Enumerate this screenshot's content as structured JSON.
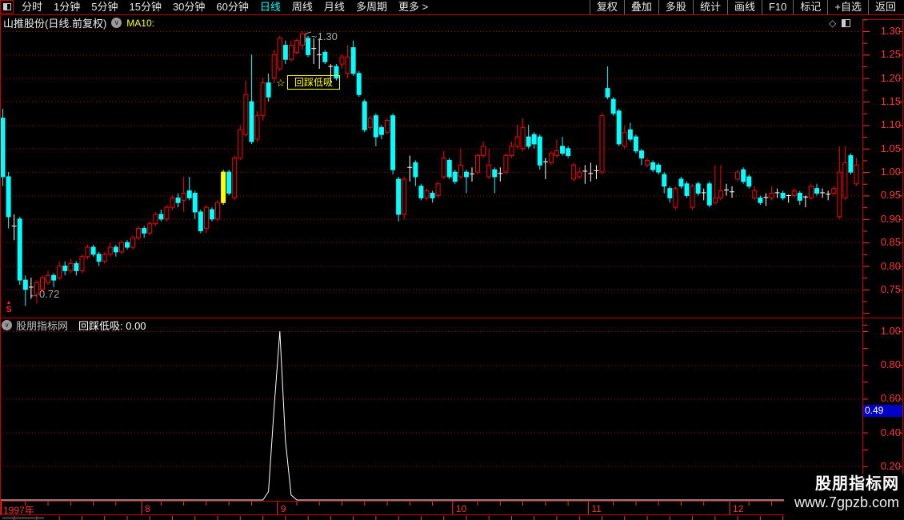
{
  "menu_left": {
    "items": [
      {
        "label": "分时",
        "active": false
      },
      {
        "label": "1分钟",
        "active": false
      },
      {
        "label": "5分钟",
        "active": false
      },
      {
        "label": "15分钟",
        "active": false
      },
      {
        "label": "30分钟",
        "active": false
      },
      {
        "label": "60分钟",
        "active": false
      },
      {
        "label": "日线",
        "active": true
      },
      {
        "label": "周线",
        "active": false
      },
      {
        "label": "月线",
        "active": false
      },
      {
        "label": "多周期",
        "active": false
      },
      {
        "label": "更多 >",
        "active": false
      }
    ]
  },
  "menu_right": {
    "items": [
      "复权",
      "叠加",
      "多股",
      "统计",
      "画线",
      "F10",
      "标记",
      "+自选",
      "返回"
    ]
  },
  "title": {
    "stock": "山推股份(日线.前复权)",
    "ma_label": "MA10:",
    "diamond_icon": "◇"
  },
  "indicator_header": {
    "brand": "股朋指标网",
    "name_value": "回踩低吸: 0.00"
  },
  "watermark": {
    "line1": "股朋指标网",
    "line2": "www.7gpzb.com"
  },
  "colors": {
    "up": "#ff0000",
    "down": "#00ffff",
    "doji": "#ffffff",
    "highlight": "#ffff00",
    "axis_text": "#ff3232",
    "grid": "#b40000",
    "frame": "#c80000",
    "active_tab": "#00ffff",
    "badge_bg": "#0000c8",
    "spike": "#ffffff"
  },
  "chart_data": {
    "type": "candlestick",
    "title": "山推股份 日线 前复权 1997",
    "price_axis_labels": [
      "1.30",
      "1.25",
      "1.20",
      "1.15",
      "1.10",
      "1.05",
      "1.00",
      "0.95",
      "0.90",
      "0.85",
      "0.80",
      "0.75"
    ],
    "price_axis_range": [
      0.75,
      1.3
    ],
    "candles_ohlc_order": "open,high,low,close",
    "candles": [
      [
        1.115,
        1.135,
        0.97,
        0.99
      ],
      [
        0.99,
        1.0,
        0.88,
        0.905
      ],
      [
        0.89,
        0.91,
        0.855,
        0.885
      ],
      [
        0.9,
        0.905,
        0.76,
        0.77
      ],
      [
        0.77,
        0.78,
        0.715,
        0.75
      ],
      [
        0.758,
        0.775,
        0.73,
        0.755
      ],
      [
        0.74,
        0.77,
        0.72,
        0.765
      ],
      [
        0.75,
        0.78,
        0.745,
        0.775
      ],
      [
        0.765,
        0.79,
        0.76,
        0.78
      ],
      [
        0.78,
        0.785,
        0.755,
        0.77
      ],
      [
        0.775,
        0.81,
        0.77,
        0.8
      ],
      [
        0.8,
        0.81,
        0.78,
        0.79
      ],
      [
        0.79,
        0.815,
        0.785,
        0.805
      ],
      [
        0.805,
        0.81,
        0.78,
        0.79
      ],
      [
        0.79,
        0.825,
        0.785,
        0.82
      ],
      [
        0.82,
        0.845,
        0.815,
        0.84
      ],
      [
        0.84,
        0.845,
        0.82,
        0.825
      ],
      [
        0.825,
        0.83,
        0.8,
        0.81
      ],
      [
        0.81,
        0.83,
        0.805,
        0.825
      ],
      [
        0.825,
        0.85,
        0.82,
        0.84
      ],
      [
        0.84,
        0.845,
        0.82,
        0.83
      ],
      [
        0.83,
        0.855,
        0.825,
        0.85
      ],
      [
        0.85,
        0.855,
        0.835,
        0.84
      ],
      [
        0.84,
        0.865,
        0.835,
        0.86
      ],
      [
        0.86,
        0.885,
        0.855,
        0.88
      ],
      [
        0.88,
        0.885,
        0.86,
        0.87
      ],
      [
        0.87,
        0.895,
        0.865,
        0.89
      ],
      [
        0.89,
        0.915,
        0.885,
        0.91
      ],
      [
        0.91,
        0.92,
        0.895,
        0.9
      ],
      [
        0.9,
        0.93,
        0.895,
        0.925
      ],
      [
        0.925,
        0.95,
        0.92,
        0.945
      ],
      [
        0.945,
        0.955,
        0.925,
        0.935
      ],
      [
        0.94,
        0.99,
        0.915,
        0.955
      ],
      [
        0.96,
        0.99,
        0.94,
        0.945
      ],
      [
        0.955,
        0.96,
        0.9,
        0.915
      ],
      [
        0.915,
        0.92,
        0.87,
        0.875
      ],
      [
        0.88,
        0.93,
        0.87,
        0.925
      ],
      [
        0.92,
        0.925,
        0.895,
        0.9
      ],
      [
        0.9,
        0.94,
        0.895,
        0.935
      ],
      [
        0.935,
        1.005,
        0.93,
        1.0
      ],
      [
        1.0,
        1.005,
        0.95,
        0.955
      ],
      [
        0.945,
        1.035,
        0.94,
        1.03
      ],
      [
        1.03,
        1.1,
        1.025,
        1.09
      ],
      [
        1.08,
        1.195,
        1.075,
        1.165
      ],
      [
        1.15,
        1.25,
        1.06,
        1.065
      ],
      [
        1.07,
        1.13,
        1.065,
        1.12
      ],
      [
        1.12,
        1.2,
        1.11,
        1.19
      ],
      [
        1.19,
        1.21,
        1.15,
        1.16
      ],
      [
        1.2,
        1.26,
        1.19,
        1.25
      ],
      [
        1.22,
        1.29,
        1.215,
        1.285
      ],
      [
        1.27,
        1.28,
        1.23,
        1.24
      ],
      [
        1.24,
        1.28,
        1.235,
        1.27
      ],
      [
        1.255,
        1.285,
        1.25,
        1.28
      ],
      [
        1.27,
        1.3,
        1.26,
        1.295
      ],
      [
        1.285,
        1.29,
        1.245,
        1.25
      ],
      [
        1.26,
        1.285,
        1.23,
        1.263
      ],
      [
        1.253,
        1.285,
        1.22,
        1.25
      ],
      [
        1.255,
        1.26,
        1.23,
        1.235
      ],
      [
        1.222,
        1.23,
        1.19,
        1.225
      ],
      [
        1.225,
        1.23,
        1.195,
        1.2
      ],
      [
        1.23,
        1.25,
        1.22,
        1.245
      ],
      [
        1.21,
        1.27,
        1.2,
        1.245
      ],
      [
        1.265,
        1.28,
        1.205,
        1.21
      ],
      [
        1.21,
        1.215,
        1.16,
        1.165
      ],
      [
        1.15,
        1.155,
        1.085,
        1.09
      ],
      [
        1.095,
        1.12,
        1.09,
        1.115
      ],
      [
        1.12,
        1.125,
        1.055,
        1.075
      ],
      [
        1.095,
        1.1,
        1.07,
        1.08
      ],
      [
        1.085,
        1.115,
        1.08,
        1.11
      ],
      [
        1.12,
        1.125,
        0.995,
        1.005
      ],
      [
        0.985,
        0.99,
        0.895,
        0.91
      ],
      [
        0.91,
        0.99,
        0.9,
        0.985
      ],
      [
        1.005,
        1.035,
        0.98,
        1.01
      ],
      [
        1.02,
        1.025,
        0.97,
        0.99
      ],
      [
        0.97,
        0.975,
        0.94,
        0.945
      ],
      [
        0.945,
        0.965,
        0.94,
        0.96
      ],
      [
        0.955,
        0.96,
        0.935,
        0.945
      ],
      [
        0.95,
        0.98,
        0.945,
        0.975
      ],
      [
        0.99,
        1.045,
        0.985,
        1.03
      ],
      [
        1.025,
        1.03,
        0.985,
        0.99
      ],
      [
        1.0,
        1.005,
        0.975,
        0.98
      ],
      [
        0.99,
        1.05,
        0.985,
        1.015
      ],
      [
        1.0,
        1.005,
        0.955,
        0.99
      ],
      [
        0.993,
        1.01,
        0.98,
        0.996
      ],
      [
        1.0,
        1.04,
        0.995,
        1.035
      ],
      [
        1.035,
        1.065,
        1.03,
        1.055
      ],
      [
        0.99,
        1.05,
        0.985,
        1.015
      ],
      [
        1.005,
        1.01,
        0.955,
        0.99
      ],
      [
        0.995,
        1.01,
        0.98,
        0.997
      ],
      [
        1.0,
        1.04,
        0.995,
        1.035
      ],
      [
        1.035,
        1.065,
        1.03,
        1.055
      ],
      [
        1.055,
        1.1,
        1.05,
        1.075
      ],
      [
        1.05,
        1.115,
        1.045,
        1.095
      ],
      [
        1.075,
        1.1,
        1.05,
        1.055
      ],
      [
        1.08,
        1.085,
        1.05,
        1.06
      ],
      [
        1.075,
        1.08,
        1.005,
        1.015
      ],
      [
        1.018,
        1.03,
        0.985,
        1.022
      ],
      [
        1.02,
        1.045,
        1.015,
        1.04
      ],
      [
        1.035,
        1.07,
        1.03,
        1.045
      ],
      [
        1.055,
        1.075,
        1.035,
        1.04
      ],
      [
        1.05,
        1.055,
        1.03,
        1.035
      ],
      [
        0.985,
        1.02,
        0.98,
        1.015
      ],
      [
        0.99,
        1.01,
        0.985,
        1.0
      ],
      [
        0.998,
        1.015,
        0.975,
        1.002
      ],
      [
        1.0,
        1.02,
        0.98,
        0.997
      ],
      [
        0.999,
        1.015,
        0.985,
        1.003
      ],
      [
        1.0,
        1.125,
        0.995,
        1.12
      ],
      [
        1.178,
        1.225,
        1.155,
        1.16
      ],
      [
        1.155,
        1.16,
        1.12,
        1.125
      ],
      [
        1.13,
        1.135,
        1.055,
        1.06
      ],
      [
        1.055,
        1.1,
        1.05,
        1.085
      ],
      [
        1.09,
        1.105,
        1.065,
        1.07
      ],
      [
        1.075,
        1.08,
        1.04,
        1.045
      ],
      [
        1.045,
        1.05,
        1.015,
        1.03
      ],
      [
        1.015,
        1.03,
        1.01,
        1.025
      ],
      [
        1.02,
        1.025,
        1.0,
        1.005
      ],
      [
        1.015,
        1.02,
        0.995,
        1.0
      ],
      [
        0.995,
        1.0,
        0.955,
        0.97
      ],
      [
        0.965,
        0.97,
        0.935,
        0.945
      ],
      [
        0.925,
        0.97,
        0.92,
        0.965
      ],
      [
        0.985,
        0.99,
        0.965,
        0.97
      ],
      [
        0.975,
        0.98,
        0.945,
        0.95
      ],
      [
        0.925,
        0.975,
        0.92,
        0.97
      ],
      [
        0.975,
        0.98,
        0.95,
        0.955
      ],
      [
        0.953,
        0.965,
        0.94,
        0.956
      ],
      [
        0.975,
        0.98,
        0.925,
        0.93
      ],
      [
        0.935,
        1.015,
        0.93,
        0.945
      ],
      [
        0.945,
        1.015,
        0.94,
        0.96
      ],
      [
        0.958,
        0.975,
        0.95,
        0.962
      ],
      [
        0.96,
        0.97,
        0.945,
        0.958
      ],
      [
        0.985,
        1.005,
        0.98,
        1.0
      ],
      [
        1.005,
        1.01,
        0.975,
        0.98
      ],
      [
        0.99,
        0.995,
        0.965,
        0.97
      ],
      [
        0.945,
        0.97,
        0.94,
        0.96
      ],
      [
        0.945,
        0.95,
        0.93,
        0.935
      ],
      [
        0.943,
        0.955,
        0.928,
        0.946
      ],
      [
        0.945,
        0.97,
        0.94,
        0.955
      ],
      [
        0.953,
        0.965,
        0.945,
        0.956
      ],
      [
        0.955,
        0.96,
        0.94,
        0.945
      ],
      [
        0.948,
        0.952,
        0.935,
        0.95
      ],
      [
        0.95,
        0.965,
        0.945,
        0.96
      ],
      [
        0.955,
        0.96,
        0.93,
        0.94
      ],
      [
        0.943,
        0.95,
        0.925,
        0.947
      ],
      [
        0.945,
        0.975,
        0.94,
        0.97
      ],
      [
        0.965,
        0.975,
        0.95,
        0.955
      ],
      [
        0.953,
        0.965,
        0.945,
        0.956
      ],
      [
        0.95,
        0.96,
        0.94,
        0.953
      ],
      [
        0.955,
        0.97,
        0.95,
        0.965
      ],
      [
        0.905,
        1.055,
        0.9,
        1.0
      ],
      [
        0.945,
        1.055,
        0.94,
        1.02
      ],
      [
        1.035,
        1.04,
        0.995,
        1.0
      ],
      [
        0.975,
        1.03,
        0.97,
        1.015
      ]
    ],
    "yellow_highlight_index": 39,
    "high_point": {
      "index": 53,
      "price": 1.3,
      "label": "~1.30"
    },
    "low_point": {
      "index": 4,
      "price": 0.72,
      "label": "←0.72"
    },
    "signal_annotation": {
      "index": 50,
      "star": "☆",
      "text": "回踩低吸"
    },
    "indicator": {
      "name": "回踩低吸",
      "current_value": "0.00",
      "axis_labels": [
        "1.00",
        "0.80",
        "0.60",
        "0.40",
        "0.20"
      ],
      "axis_range": [
        0,
        1.0
      ],
      "spike_values": {
        "47": 0.05,
        "48": 0.55,
        "49": 1.0,
        "50": 0.35,
        "51": 0.03
      },
      "cursor_badge": "0.49"
    },
    "timeline": {
      "year_label": "1997年",
      "month_ticks": [
        {
          "label": "8",
          "index": 25
        },
        {
          "label": "9",
          "index": 49
        },
        {
          "label": "10",
          "index": 80
        },
        {
          "label": "11",
          "index": 104
        },
        {
          "label": "12",
          "index": 129
        }
      ]
    }
  }
}
